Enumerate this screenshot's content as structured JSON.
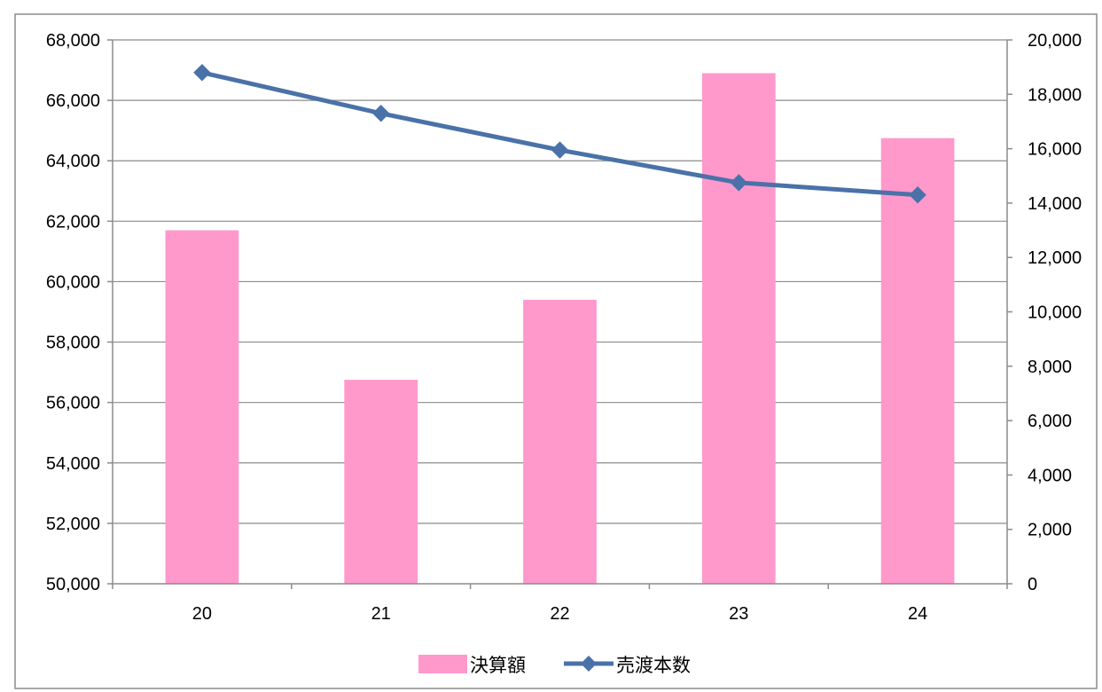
{
  "colors": {
    "bar": "#ff99cc",
    "line": "#4a72a8",
    "grid": "#8c8c8c",
    "axis": "#8c8c8c",
    "frame": "#8c8c8c"
  },
  "chart_data": {
    "type": "bar",
    "categories": [
      "20",
      "21",
      "22",
      "23",
      "24"
    ],
    "series": [
      {
        "name": "決算額",
        "type": "bar",
        "axis": "left",
        "values": [
          61700,
          56750,
          59400,
          66900,
          64750
        ]
      },
      {
        "name": "売渡本数",
        "type": "line",
        "axis": "right",
        "marker": "diamond",
        "values": [
          18800,
          17300,
          15950,
          14750,
          14300
        ]
      }
    ],
    "y_left": {
      "min": 50000,
      "max": 68000,
      "ticks": [
        "50,000",
        "52,000",
        "54,000",
        "56,000",
        "58,000",
        "60,000",
        "62,000",
        "64,000",
        "66,000",
        "68,000"
      ]
    },
    "y_right": {
      "min": 0,
      "max": 20000,
      "ticks": [
        "0",
        "2,000",
        "4,000",
        "6,000",
        "8,000",
        "10,000",
        "12,000",
        "14,000",
        "16,000",
        "18,000",
        "20,000"
      ]
    },
    "grid": true,
    "legend_position": "bottom"
  }
}
